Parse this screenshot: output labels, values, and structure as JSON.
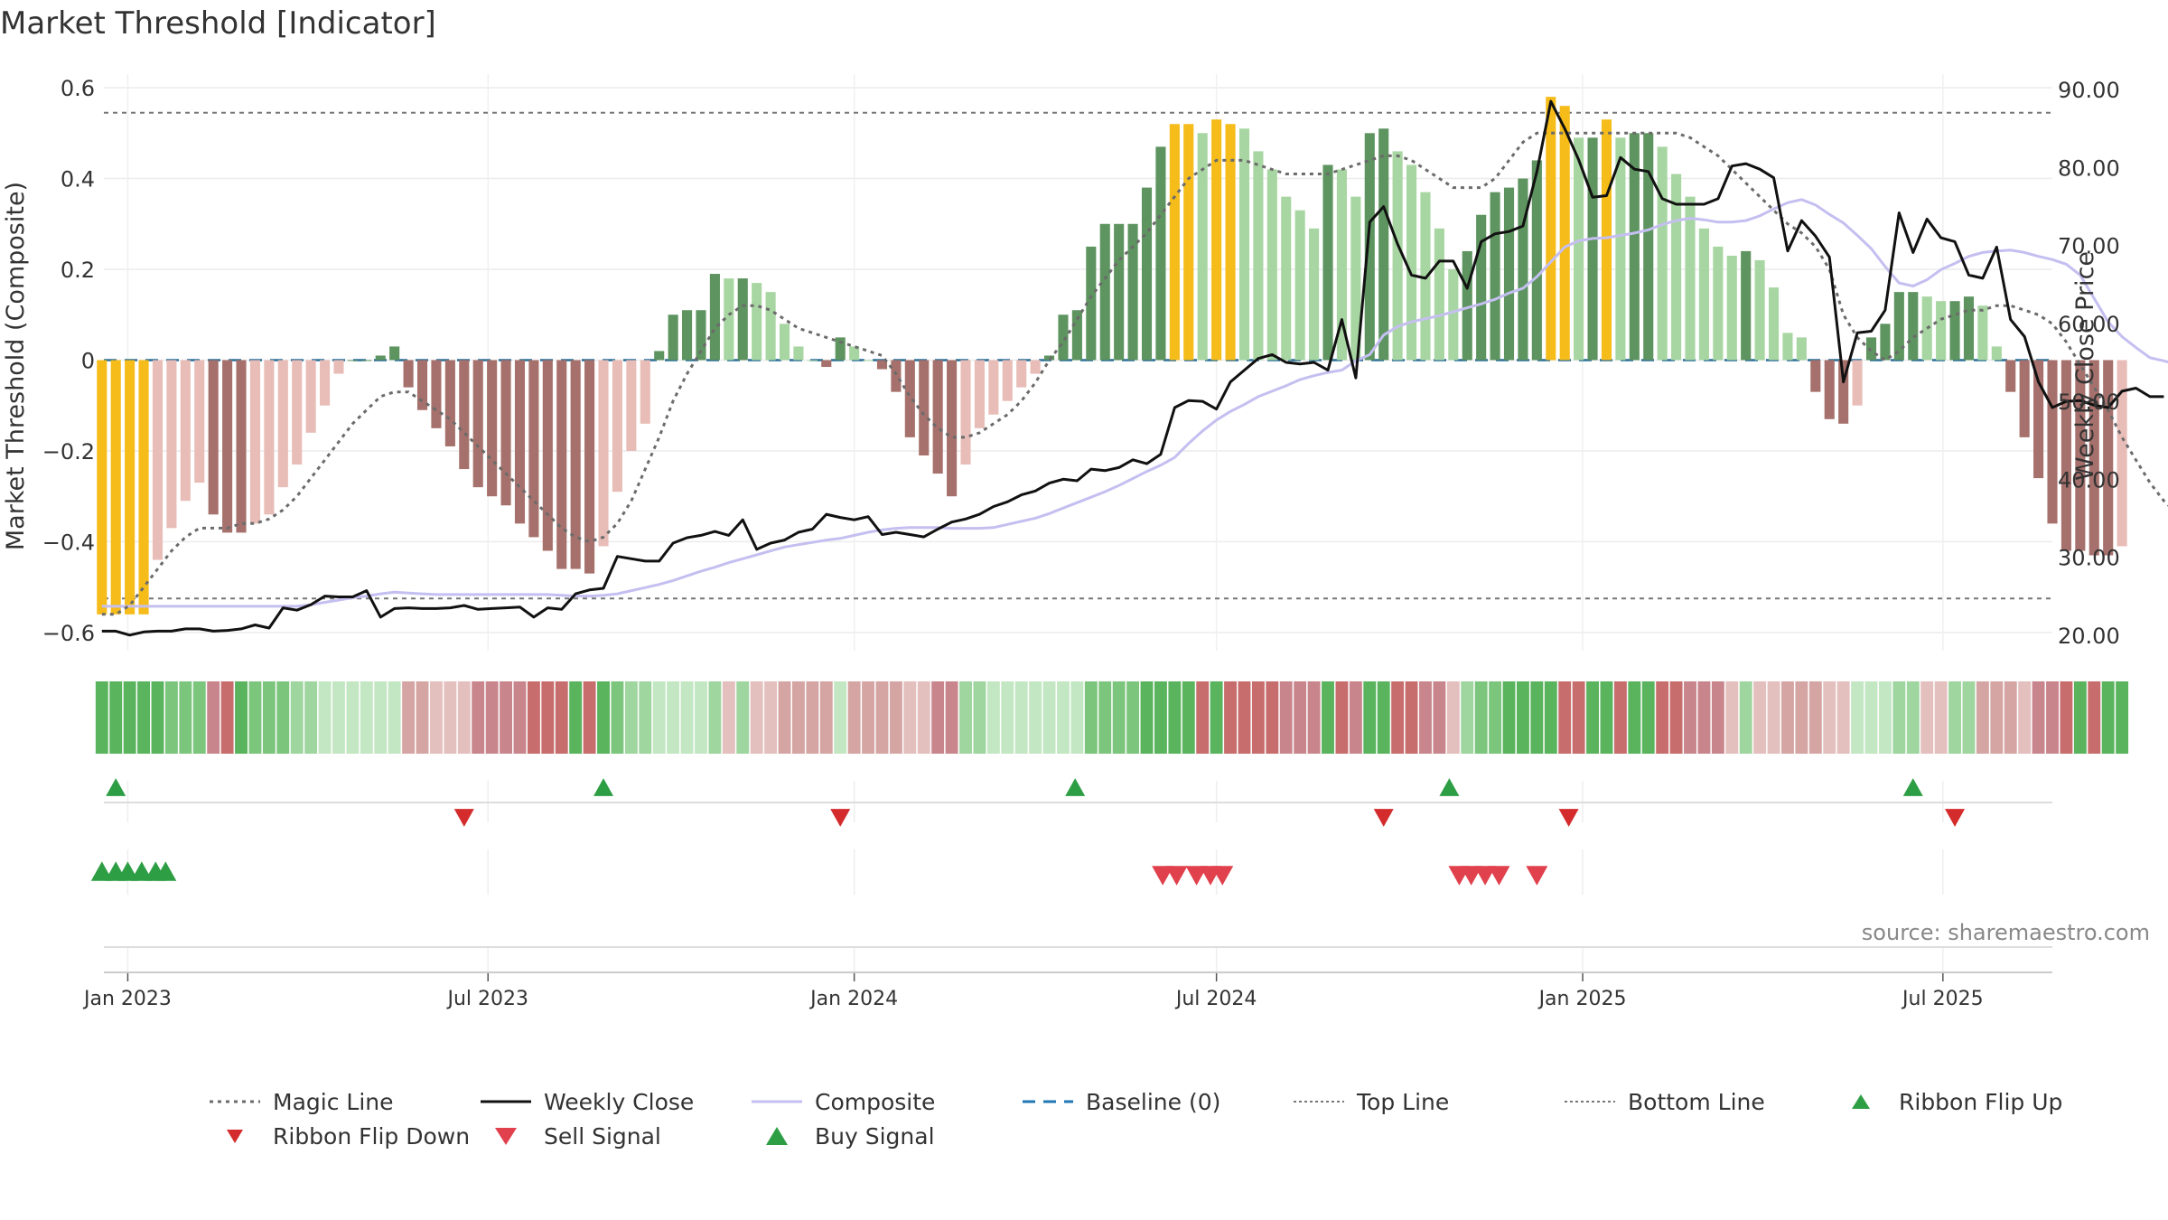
{
  "chart_data": {
    "type": "bar",
    "title": "Market Threshold [Indicator]",
    "ylabel_left": "Market Threshold (Composite)",
    "ylabel_right": "Weekly Close Price",
    "source_label": "source: sharemaestro.com",
    "x_range": [
      "2022-12-20",
      "2025-08-25"
    ],
    "x_ticks": [
      {
        "date": "2023-01-01",
        "label": "Jan 2023"
      },
      {
        "date": "2023-07-01",
        "label": "Jul 2023"
      },
      {
        "date": "2024-01-01",
        "label": "Jan 2024"
      },
      {
        "date": "2024-07-01",
        "label": "Jul 2024"
      },
      {
        "date": "2025-01-01",
        "label": "Jan 2025"
      },
      {
        "date": "2025-07-01",
        "label": "Jul 2025"
      }
    ],
    "y_left": {
      "range": [
        -0.64,
        0.63
      ],
      "ticks": [
        -0.6,
        -0.4,
        -0.2,
        0,
        0.2,
        0.4,
        0.6
      ],
      "tick_labels": [
        "−0.6",
        "−0.4",
        "−0.2",
        "0",
        "0.2",
        "0.4",
        "0.6"
      ]
    },
    "y_right": {
      "range": [
        18,
        92
      ],
      "ticks": [
        20,
        30,
        40,
        50,
        60,
        70,
        80,
        90
      ],
      "tick_labels": [
        "20.00",
        "30.00",
        "40.00",
        "50.00",
        "60.00",
        "70.00",
        "80.00",
        "90.00"
      ]
    },
    "reference_lines": {
      "top": 0.545,
      "bottom": -0.525,
      "baseline": 0
    },
    "weekly_start": "2022-12-19",
    "composite_bars": [
      -0.56,
      -0.56,
      -0.56,
      -0.56,
      -0.44,
      -0.37,
      -0.31,
      -0.27,
      -0.34,
      -0.38,
      -0.38,
      -0.36,
      -0.34,
      -0.28,
      -0.23,
      -0.16,
      -0.1,
      -0.03,
      0,
      0,
      0.01,
      0.03,
      -0.06,
      -0.11,
      -0.15,
      -0.19,
      -0.24,
      -0.28,
      -0.3,
      -0.32,
      -0.36,
      -0.39,
      -0.42,
      -0.46,
      -0.46,
      -0.47,
      -0.41,
      -0.29,
      -0.2,
      -0.14,
      0.02,
      0.1,
      0.11,
      0.11,
      0.19,
      0.18,
      0.18,
      0.17,
      0.15,
      0.08,
      0.03,
      0,
      -0.015,
      0.05,
      0.03,
      0,
      -0.02,
      -0.07,
      -0.17,
      -0.21,
      -0.25,
      -0.3,
      -0.23,
      -0.15,
      -0.12,
      -0.09,
      -0.06,
      -0.03,
      0.01,
      0.1,
      0.11,
      0.25,
      0.3,
      0.3,
      0.3,
      0.38,
      0.47,
      0.52,
      0.52,
      0.5,
      0.53,
      0.52,
      0.51,
      0.46,
      0.42,
      0.36,
      0.33,
      0.29,
      0.43,
      0.42,
      0.36,
      0.5,
      0.51,
      0.46,
      0.43,
      0.37,
      0.29,
      0.2,
      0.24,
      0.32,
      0.37,
      0.38,
      0.4,
      0.44,
      0.58,
      0.56,
      0.49,
      0.49,
      0.53,
      0.49,
      0.5,
      0.5,
      0.47,
      0.41,
      0.36,
      0.29,
      0.25,
      0.23,
      0.24,
      0.22,
      0.16,
      0.06,
      0.05,
      -0.07,
      -0.13,
      -0.14,
      -0.1,
      0.05,
      0.08,
      0.15,
      0.15,
      0.14,
      0.13,
      0.13,
      0.14,
      0.12,
      0.03,
      -0.07,
      -0.17,
      -0.26,
      -0.36,
      -0.42,
      -0.42,
      -0.43,
      -0.43,
      -0.41
    ],
    "magic_line": [
      -0.56,
      -0.56,
      -0.54,
      -0.5,
      -0.46,
      -0.42,
      -0.39,
      -0.37,
      -0.37,
      -0.37,
      -0.36,
      -0.36,
      -0.35,
      -0.33,
      -0.3,
      -0.26,
      -0.22,
      -0.18,
      -0.14,
      -0.11,
      -0.08,
      -0.07,
      -0.07,
      -0.09,
      -0.11,
      -0.13,
      -0.16,
      -0.19,
      -0.22,
      -0.25,
      -0.28,
      -0.31,
      -0.34,
      -0.37,
      -0.39,
      -0.4,
      -0.39,
      -0.36,
      -0.31,
      -0.24,
      -0.17,
      -0.09,
      -0.03,
      0.02,
      0.07,
      0.1,
      0.12,
      0.12,
      0.11,
      0.09,
      0.07,
      0.06,
      0.05,
      0.04,
      0.03,
      0.02,
      0.01,
      -0.03,
      -0.08,
      -0.12,
      -0.15,
      -0.17,
      -0.17,
      -0.16,
      -0.14,
      -0.12,
      -0.09,
      -0.05,
      0,
      0.04,
      0.09,
      0.14,
      0.18,
      0.22,
      0.25,
      0.28,
      0.32,
      0.36,
      0.4,
      0.42,
      0.44,
      0.44,
      0.44,
      0.43,
      0.42,
      0.41,
      0.41,
      0.41,
      0.41,
      0.42,
      0.43,
      0.44,
      0.45,
      0.45,
      0.44,
      0.42,
      0.4,
      0.38,
      0.38,
      0.38,
      0.4,
      0.44,
      0.48,
      0.5,
      0.5,
      0.5,
      0.5,
      0.5,
      0.5,
      0.5,
      0.5,
      0.5,
      0.5,
      0.5,
      0.49,
      0.47,
      0.45,
      0.42,
      0.39,
      0.36,
      0.33,
      0.3,
      0.28,
      0.25,
      0.2,
      0.1,
      0.05,
      0.02,
      0,
      0.02,
      0.05,
      0.07,
      0.09,
      0.1,
      0.11,
      0.11,
      0.12,
      0.12,
      0.11,
      0.1,
      0.08,
      0.04,
      -0.01,
      -0.06,
      -0.11,
      -0.17,
      -0.22,
      -0.27,
      -0.31,
      -0.34
    ],
    "weekly_close": [
      20.5,
      20.5,
      20,
      20.4,
      20.5,
      20.5,
      20.8,
      20.8,
      20.5,
      20.6,
      20.8,
      21.3,
      20.9,
      23.5,
      23.2,
      23.9,
      25,
      24.9,
      24.9,
      25.7,
      22.3,
      23.4,
      23.5,
      23.4,
      23.4,
      23.5,
      23.8,
      23.3,
      23.4,
      23.5,
      23.6,
      22.3,
      23.5,
      23.3,
      25.3,
      25.8,
      26,
      30.1,
      29.8,
      29.5,
      29.5,
      31.8,
      32.5,
      32.8,
      33.3,
      32.8,
      34.8,
      31,
      31.8,
      32.2,
      33.2,
      33.6,
      35.5,
      35.1,
      34.8,
      35.2,
      32.9,
      33.2,
      32.9,
      32.6,
      33.6,
      34.5,
      34.9,
      35.5,
      36.5,
      37.1,
      38,
      38.5,
      39.5,
      40,
      39.8,
      41.3,
      41.1,
      41.5,
      42.5,
      42,
      43.2,
      49.2,
      50.1,
      50,
      49,
      52.5,
      54,
      55.5,
      56,
      55,
      54.8,
      55,
      54,
      60.5,
      53,
      73,
      75,
      70.2,
      66.2,
      65.8,
      68,
      68,
      64.5,
      70.5,
      71.5,
      71.8,
      72.5,
      79.5,
      88.5,
      85,
      81,
      76.2,
      76.4,
      81.3,
      79.8,
      79.5,
      76,
      75.3,
      75.3,
      75.3,
      76,
      80.2,
      80.5,
      79.8,
      78.7,
      69.3,
      73.2,
      71.2,
      68.5,
      52.5,
      58.8,
      59,
      61.7,
      74.2,
      69.1,
      73.4,
      71,
      70.5,
      66.2,
      65.8,
      69.8,
      60.5,
      58.3,
      52.5,
      49.2,
      50,
      50.1,
      49.5,
      49.2,
      51.3,
      51.7,
      50.6,
      50.6
    ],
    "composite_line": [
      23.7,
      23.7,
      23.7,
      23.7,
      23.7,
      23.7,
      23.7,
      23.7,
      23.7,
      23.7,
      23.7,
      23.7,
      23.7,
      23.7,
      23.7,
      23.9,
      24.2,
      24.5,
      24.8,
      25,
      25.3,
      25.5,
      25.4,
      25.3,
      25.2,
      25.2,
      25.2,
      25.2,
      25.2,
      25.2,
      25.2,
      25.2,
      25.2,
      25.1,
      25,
      25,
      25.1,
      25.3,
      25.7,
      26.1,
      26.5,
      27,
      27.6,
      28.2,
      28.7,
      29.3,
      29.8,
      30.3,
      30.8,
      31.3,
      31.6,
      31.9,
      32.2,
      32.4,
      32.8,
      33.2,
      33.5,
      33.7,
      33.8,
      33.8,
      33.8,
      33.7,
      33.7,
      33.7,
      33.8,
      34.2,
      34.6,
      35,
      35.6,
      36.3,
      37,
      37.7,
      38.4,
      39.2,
      40.1,
      41,
      41.8,
      42.8,
      44.6,
      46.2,
      47.6,
      48.7,
      49.6,
      50.6,
      51.3,
      52,
      52.8,
      53.3,
      53.7,
      54,
      55.2,
      56,
      58.5,
      59.6,
      60.2,
      60.6,
      61,
      61.5,
      62,
      62.5,
      63.1,
      63.9,
      64.5,
      66,
      67.9,
      69.8,
      70.6,
      70.9,
      71,
      71.3,
      71.6,
      72,
      72.7,
      73.2,
      73.5,
      73.3,
      73,
      73,
      73.2,
      73.8,
      74.7,
      75.5,
      75.9,
      75.2,
      74,
      72.9,
      71.3,
      69.6,
      67.3,
      65.2,
      64.8,
      65.6,
      66.9,
      67.7,
      68.6,
      69.1,
      69.3,
      69.4,
      69.1,
      68.6,
      68.2,
      67.6,
      66.2,
      63.2,
      60.2,
      58.3,
      56.9,
      55.6,
      55.2,
      54.7,
      54.3,
      53.9
    ],
    "bar_colors": {
      "yellow": "#f5bc1a",
      "dark_green": "#5e9460",
      "light_green": "#a8d6a2",
      "dark_red": "#a6716c",
      "light_red": "#e8bdb8"
    },
    "ribbon_colors": [
      "#c3e6c3",
      "#9fd59f",
      "#7cc57d",
      "#5ab35d",
      "#d4a5a3",
      "#e3bfbd",
      "#c8858c",
      "#c76d6d"
    ],
    "signals": {
      "ribbon_flip_up": [
        "2022-12-26",
        "2023-08-28",
        "2024-04-21",
        "2024-10-26",
        "2025-06-16"
      ],
      "ribbon_flip_down": [
        "2023-06-19",
        "2023-12-25",
        "2024-09-23",
        "2024-12-25",
        "2025-07-07"
      ],
      "buy_signal": [
        "2022-12-19",
        "2022-12-26",
        "2023-01-01",
        "2023-01-08",
        "2023-01-15",
        "2023-01-20"
      ],
      "sell_signal": [
        "2024-06-04",
        "2024-06-11",
        "2024-06-21",
        "2024-06-28",
        "2024-07-04",
        "2024-10-31",
        "2024-11-06",
        "2024-11-13",
        "2024-11-20",
        "2024-12-09"
      ]
    },
    "grid": true,
    "legend_position": "bottom",
    "legend": [
      {
        "label": "Magic Line",
        "key": "dotted",
        "color": "#6b6b6b"
      },
      {
        "label": "Weekly Close",
        "key": "line",
        "color": "#111111"
      },
      {
        "label": "Composite",
        "key": "line",
        "color": "#c4bff0"
      },
      {
        "label": "Baseline (0)",
        "key": "dashed",
        "color": "#1f77b4"
      },
      {
        "label": "Top Line",
        "key": "finedot",
        "color": "#777777"
      },
      {
        "label": "Bottom Line",
        "key": "finedot",
        "color": "#777777"
      },
      {
        "label": "Ribbon Flip Up",
        "key": "triangle-up",
        "color": "#2e9e45"
      },
      {
        "label": "Ribbon Flip Down",
        "key": "triangle-down",
        "color": "#d42c2c"
      },
      {
        "label": "Sell Signal",
        "key": "triangle-down-lg",
        "color": "#e0414c"
      },
      {
        "label": "Buy Signal",
        "key": "triangle-up-lg",
        "color": "#2e9e45"
      }
    ]
  }
}
